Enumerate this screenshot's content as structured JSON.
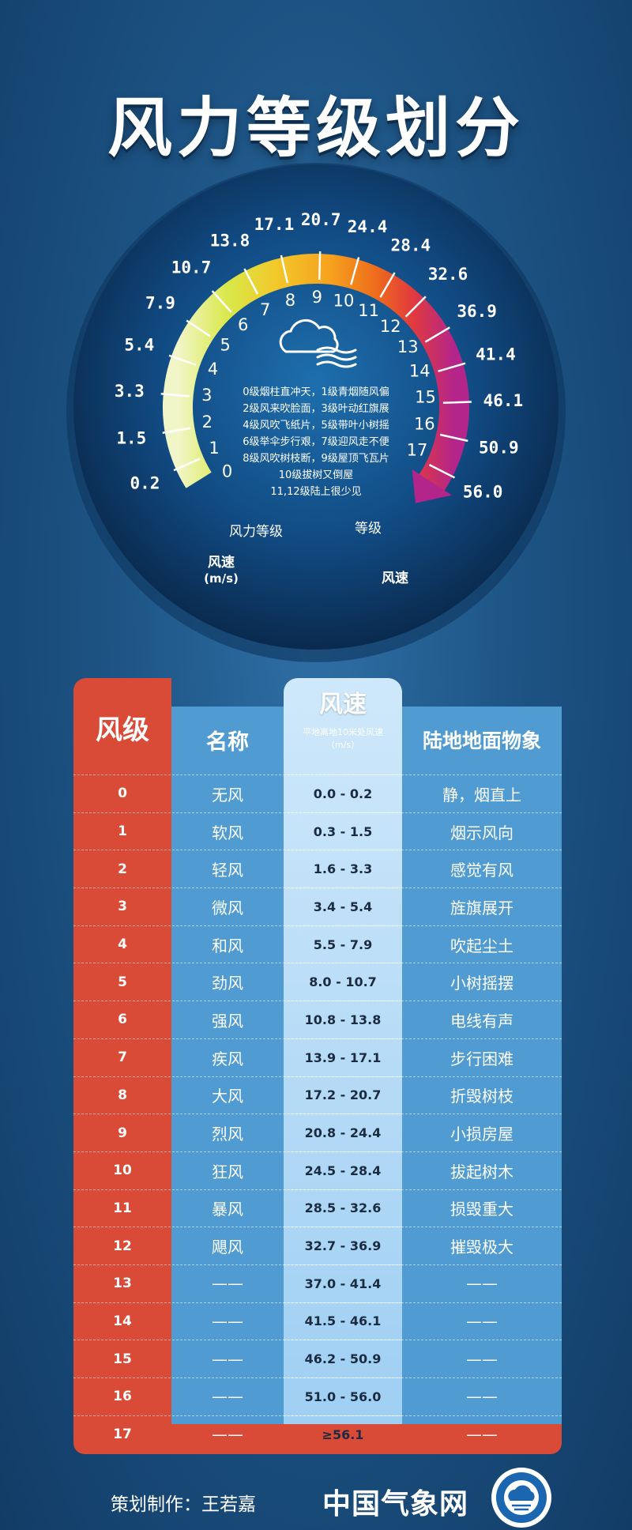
{
  "title": "风力等级划分",
  "gauge": {
    "speed_ticks": [
      "0.2",
      "1.5",
      "3.3",
      "5.4",
      "7.9",
      "10.7",
      "13.8",
      "17.1",
      "20.7",
      "24.4",
      "28.4",
      "32.6",
      "36.9",
      "41.4",
      "46.1",
      "50.9",
      "56.0"
    ],
    "level_ticks": [
      "0",
      "1",
      "2",
      "3",
      "4",
      "5",
      "6",
      "7",
      "8",
      "9",
      "10",
      "11",
      "12",
      "13",
      "14",
      "15",
      "16",
      "17"
    ],
    "label_level": "风力等级",
    "label_grade": "等级",
    "label_speed_left": "风速",
    "label_speed_left_unit": "(m/s)",
    "label_speed_right": "风速",
    "icon": "cloud-wind-icon",
    "legend": [
      "0级烟柱直冲天，1级青烟随风偏",
      "2级风来吹脸面，3级叶动红旗展",
      "4级风吹飞纸片，5级带叶小树摇",
      "6级举伞步行艰，7级迎风走不便",
      "8级风吹树枝断，9级屋顶飞瓦片",
      "10级拔树又倒屋",
      "11,12级陆上很少见"
    ]
  },
  "table": {
    "headers": {
      "level": "风级",
      "name": "名称",
      "speed": "风速",
      "speed_sub": "平地离地10米处风速",
      "speed_unit": "（m/s）",
      "land": "陆地地面物象"
    },
    "rows": [
      {
        "level": "0",
        "name": "无风",
        "speed": "0.0 - 0.2",
        "land": "静，烟直上"
      },
      {
        "level": "1",
        "name": "软风",
        "speed": "0.3 - 1.5",
        "land": "烟示风向"
      },
      {
        "level": "2",
        "name": "轻风",
        "speed": "1.6 - 3.3",
        "land": "感觉有风"
      },
      {
        "level": "3",
        "name": "微风",
        "speed": "3.4 - 5.4",
        "land": "旌旗展开"
      },
      {
        "level": "4",
        "name": "和风",
        "speed": "5.5 - 7.9",
        "land": "吹起尘土"
      },
      {
        "level": "5",
        "name": "劲风",
        "speed": "8.0 - 10.7",
        "land": "小树摇摆"
      },
      {
        "level": "6",
        "name": "强风",
        "speed": "10.8 - 13.8",
        "land": "电线有声"
      },
      {
        "level": "7",
        "name": "疾风",
        "speed": "13.9 - 17.1",
        "land": "步行困难"
      },
      {
        "level": "8",
        "name": "大风",
        "speed": "17.2 - 20.7",
        "land": "折毁树枝"
      },
      {
        "level": "9",
        "name": "烈风",
        "speed": "20.8 - 24.4",
        "land": "小损房屋"
      },
      {
        "level": "10",
        "name": "狂风",
        "speed": "24.5 - 28.4",
        "land": "拔起树木"
      },
      {
        "level": "11",
        "name": "暴风",
        "speed": "28.5 - 32.6",
        "land": "损毁重大"
      },
      {
        "level": "12",
        "name": "飓风",
        "speed": "32.7 - 36.9",
        "land": "摧毁极大"
      },
      {
        "level": "13",
        "name": "——",
        "speed": "37.0 - 41.4",
        "land": "——"
      },
      {
        "level": "14",
        "name": "——",
        "speed": "41.5 - 46.1",
        "land": "——"
      },
      {
        "level": "15",
        "name": "——",
        "speed": "46.2 - 50.9",
        "land": "——"
      },
      {
        "level": "16",
        "name": "——",
        "speed": "51.0 - 56.0",
        "land": "——"
      },
      {
        "level": "17",
        "name": "——",
        "speed": "≥56.1",
        "land": "——"
      }
    ]
  },
  "footer": {
    "credit": "策划制作：王若嘉",
    "brand": "中国气象网",
    "logo_icon": "cma-logo-icon"
  }
}
